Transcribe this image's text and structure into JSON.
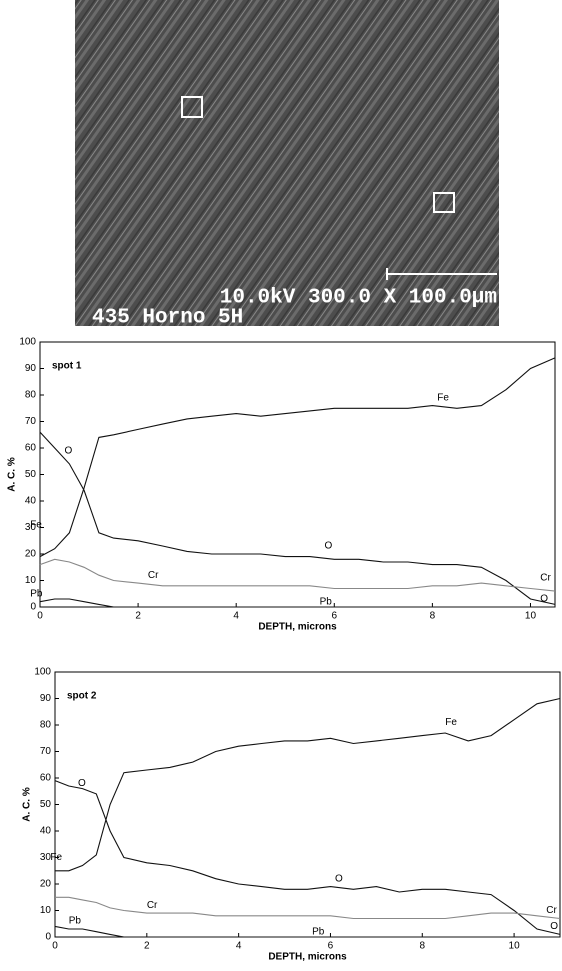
{
  "image": {
    "scale_text": "10.0kV 300.0 X 100.0µm",
    "id_text": "435 Horno 5H"
  },
  "chart_data": [
    {
      "type": "line",
      "annotation": "spot 1",
      "xlabel": "DEPTH, microns",
      "ylabel": "A. C. %",
      "xlim": [
        0,
        10.5
      ],
      "ylim": [
        0,
        100
      ],
      "xticks": [
        0,
        2,
        4,
        6,
        8,
        10
      ],
      "yticks": [
        0,
        10,
        20,
        30,
        40,
        50,
        60,
        70,
        80,
        90,
        100
      ],
      "x": [
        0,
        0.3,
        0.6,
        0.9,
        1.2,
        1.5,
        2,
        2.5,
        3,
        3.5,
        4,
        4.5,
        5,
        5.5,
        6,
        6.5,
        7,
        7.5,
        8,
        8.5,
        9,
        9.5,
        10,
        10.5
      ],
      "series": [
        {
          "name": "Fe",
          "color": "#111111",
          "values": [
            19,
            22,
            28,
            45,
            64,
            65,
            67,
            69,
            71,
            72,
            73,
            72,
            73,
            74,
            75,
            75,
            75,
            75,
            76,
            75,
            76,
            82,
            90,
            94
          ]
        },
        {
          "name": "O",
          "color": "#111111",
          "values": [
            66,
            60,
            54,
            44,
            28,
            26,
            25,
            23,
            21,
            20,
            20,
            20,
            19,
            19,
            18,
            18,
            17,
            17,
            16,
            16,
            15,
            10,
            3,
            1
          ]
        },
        {
          "name": "Cr",
          "color": "#888888",
          "values": [
            16,
            18,
            17,
            15,
            12,
            10,
            9,
            8,
            8,
            8,
            8,
            8,
            8,
            8,
            7,
            7,
            7,
            7,
            8,
            8,
            9,
            8,
            7,
            6
          ]
        },
        {
          "name": "Pb",
          "color": "#111111",
          "values": [
            2,
            3,
            3,
            2,
            1,
            0,
            0,
            0,
            0,
            0,
            0,
            0,
            0,
            0,
            0,
            0,
            0,
            0,
            0,
            0,
            0,
            0,
            0,
            0
          ]
        }
      ]
    },
    {
      "type": "line",
      "annotation": "spot 2",
      "xlabel": "DEPTH, microns",
      "ylabel": "A. C. %",
      "xlim": [
        0,
        11
      ],
      "ylim": [
        0,
        100
      ],
      "xticks": [
        0,
        2,
        4,
        6,
        8,
        10
      ],
      "yticks": [
        0,
        10,
        20,
        30,
        40,
        50,
        60,
        70,
        80,
        90,
        100
      ],
      "x": [
        0,
        0.3,
        0.6,
        0.9,
        1.2,
        1.5,
        2,
        2.5,
        3,
        3.5,
        4,
        4.5,
        5,
        5.5,
        6,
        6.5,
        7,
        7.5,
        8,
        8.5,
        9,
        9.5,
        10,
        10.5,
        11
      ],
      "series": [
        {
          "name": "Fe",
          "color": "#111111",
          "values": [
            25,
            25,
            27,
            31,
            50,
            62,
            63,
            64,
            66,
            70,
            72,
            73,
            74,
            74,
            75,
            73,
            74,
            75,
            76,
            77,
            74,
            76,
            82,
            88,
            90
          ]
        },
        {
          "name": "O",
          "color": "#111111",
          "values": [
            59,
            57,
            56,
            54,
            40,
            30,
            28,
            27,
            25,
            22,
            20,
            19,
            18,
            18,
            19,
            18,
            19,
            17,
            18,
            18,
            17,
            16,
            10,
            3,
            1
          ]
        },
        {
          "name": "Cr",
          "color": "#888888",
          "values": [
            15,
            15,
            14,
            13,
            11,
            10,
            9,
            9,
            9,
            8,
            8,
            8,
            8,
            8,
            8,
            7,
            7,
            7,
            7,
            7,
            8,
            9,
            9,
            8,
            7
          ]
        },
        {
          "name": "Pb",
          "color": "#111111",
          "values": [
            4,
            3,
            3,
            2,
            1,
            0,
            0,
            0,
            0,
            0,
            0,
            0,
            0,
            0,
            0,
            0,
            0,
            0,
            0,
            0,
            0,
            0,
            0,
            0,
            0
          ]
        }
      ]
    }
  ]
}
